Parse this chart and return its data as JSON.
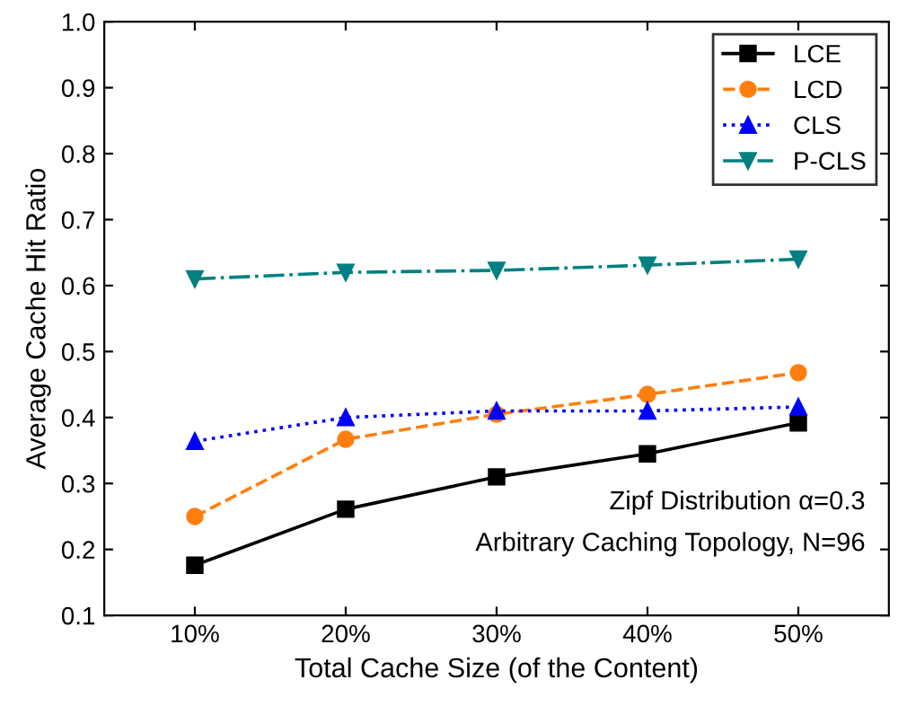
{
  "chart_data": {
    "type": "line",
    "xlabel": "Total Cache Size (of the Content)",
    "ylabel": "Average Cache Hit Ratio",
    "categories": [
      "10%",
      "20%",
      "30%",
      "40%",
      "50%"
    ],
    "series": [
      {
        "name": "LCE",
        "color": "#000000",
        "marker": "square",
        "line_style": "solid",
        "values": [
          0.176,
          0.261,
          0.31,
          0.345,
          0.392
        ]
      },
      {
        "name": "LCD",
        "color": "#ff7f0e",
        "marker": "circle",
        "line_style": "dashed",
        "values": [
          0.25,
          0.367,
          0.405,
          0.435,
          0.468
        ]
      },
      {
        "name": "CLS",
        "color": "#0000ff",
        "marker": "triangle",
        "line_style": "dotted",
        "values": [
          0.364,
          0.4,
          0.41,
          0.41,
          0.416
        ]
      },
      {
        "name": "P-CLS",
        "color": "#008080",
        "marker": "triangle_down",
        "line_style": "dashdot",
        "values": [
          0.61,
          0.62,
          0.623,
          0.631,
          0.64
        ]
      }
    ],
    "ylim": [
      0.1,
      1.0
    ],
    "yticks": [
      0.1,
      0.2,
      0.3,
      0.4,
      0.5,
      0.6,
      0.7,
      0.8,
      0.9,
      {
        "value": 1.0,
        "label": "1.0"
      }
    ],
    "legend": "top right",
    "grid": false,
    "annotations": [
      "Zipf Distribution α=0.3",
      "Arbitrary Caching Topology, N=96"
    ]
  }
}
